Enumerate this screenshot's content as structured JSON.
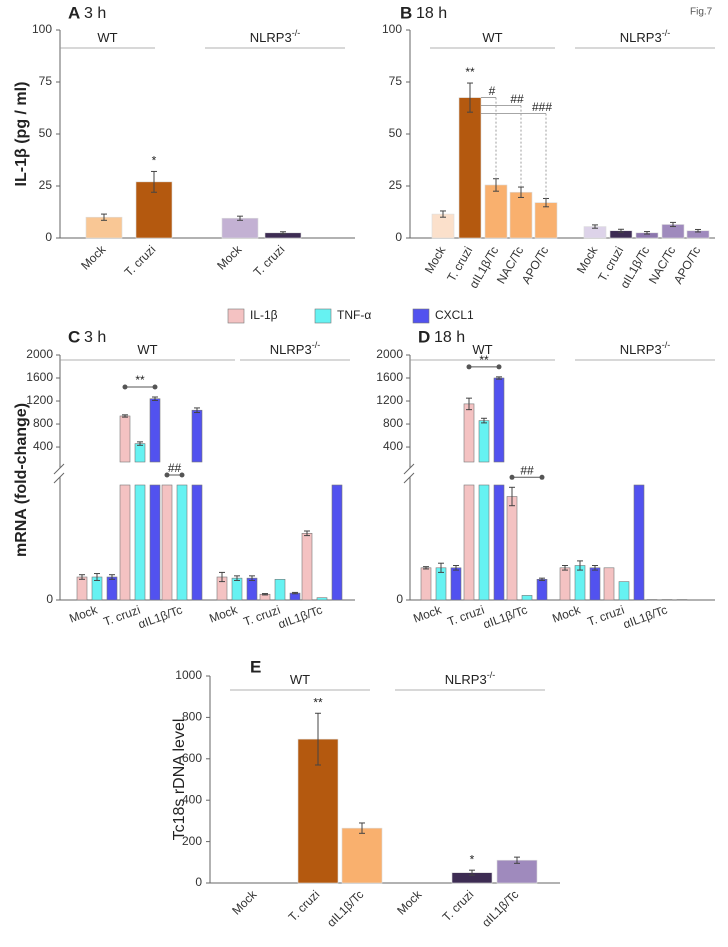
{
  "chart_data": [
    {
      "type": "bar",
      "panel": "A",
      "title": "3 h",
      "ylabel": "IL-1β (pg / ml)",
      "categories": [
        "Mock",
        "T. cruzi",
        "Mock",
        "T. cruzi"
      ],
      "values": [
        10,
        27,
        9.5,
        2.5
      ],
      "errors": [
        1.5,
        5,
        1,
        0.5
      ],
      "colors": [
        "#f9c795",
        "#b4590f",
        "#c3b1d3",
        "#3d2c53"
      ],
      "value_annotations": [
        null,
        "*",
        null,
        null
      ],
      "groups": [
        {
          "name": "WT",
          "size": 2
        },
        {
          "name": "NLRP3",
          "sup": "-/-",
          "size": 2
        }
      ],
      "ylim": [
        0,
        100
      ],
      "yticks": [
        0,
        25,
        50,
        75,
        100
      ]
    },
    {
      "type": "bar",
      "panel": "B",
      "title": "18 h",
      "note": "Fig.7",
      "categories": [
        "Mock",
        "T. cruzi",
        "αIL1β/Tc",
        "NAC/Tc",
        "APO/Tc",
        "Mock",
        "T. cruzi",
        "αIL1β/Tc",
        "NAC/Tc",
        "APO/Tc"
      ],
      "values": [
        11.5,
        67.5,
        25.5,
        22,
        17,
        5.5,
        3.5,
        2.5,
        6.5,
        3.5
      ],
      "errors": [
        1.5,
        7,
        3,
        2.5,
        2,
        0.8,
        0.7,
        0.6,
        1,
        0.6
      ],
      "colors": [
        "#fbe0cb",
        "#b4590f",
        "#f9b06e",
        "#f9b06e",
        "#f9b06e",
        "#ddd3e9",
        "#3d2c53",
        "#8c76ad",
        "#9f8abd",
        "#9f8abd"
      ],
      "value_annotations": [
        null,
        "**",
        null,
        null,
        null,
        null,
        null,
        null,
        null,
        null
      ],
      "brackets": [
        {
          "text": "#",
          "from": 1,
          "to": 2
        },
        {
          "text": "##",
          "from": 1,
          "to": 3
        },
        {
          "text": "###",
          "from": 1,
          "to": 4
        }
      ],
      "groups": [
        {
          "name": "WT",
          "size": 5
        },
        {
          "name": "NLRP3",
          "sup": "-/-",
          "size": 5
        }
      ],
      "ylim": [
        0,
        100
      ],
      "yticks": [
        0,
        25,
        50,
        75,
        100
      ]
    },
    {
      "type": "grouped_bar",
      "panel": "C",
      "title": "3 h",
      "ylabel": "mRNA (fold-change)",
      "categories": [
        "Mock",
        "T. cruzi",
        "αIL1β/Tc",
        "Mock",
        "T. cruzi",
        "αIL1β/Tc"
      ],
      "series": [
        {
          "name": "IL-1β",
          "color": "#f4c2c2",
          "values": [
            1.0,
            940,
            50,
            1.0,
            0.25,
            2.9
          ],
          "errors": [
            0.1,
            20,
            0,
            0.2,
            0.03,
            0.1
          ]
        },
        {
          "name": "TNF-α",
          "color": "#66f2f2",
          "values": [
            1.0,
            460,
            50,
            0.95,
            0.9,
            0.1
          ],
          "errors": [
            0.15,
            30,
            0,
            0.1,
            0,
            0
          ]
        },
        {
          "name": "CXCL1",
          "color": "#5252ef",
          "values": [
            1.0,
            1240,
            1040,
            0.95,
            0.3,
            50
          ],
          "errors": [
            0.1,
            30,
            40,
            0.1,
            0.03,
            0
          ]
        }
      ],
      "brackets": [
        {
          "text": "**",
          "category": 1,
          "series": [
            0,
            2
          ]
        },
        {
          "text": "##",
          "category": 2,
          "series": [
            0,
            1
          ]
        }
      ],
      "groups": [
        {
          "name": "WT",
          "size": 3
        },
        {
          "name": "NLRP3",
          "sup": "-/-",
          "size": 3
        }
      ],
      "ylim": [
        0,
        2000
      ],
      "ybreak": [
        5,
        140
      ],
      "yticks": [
        0,
        400,
        800,
        1200,
        1600,
        2000
      ]
    },
    {
      "type": "grouped_bar",
      "panel": "D",
      "title": "18 h",
      "categories": [
        "Mock",
        "T. cruzi",
        "αIL1β/Tc",
        "Mock",
        "T. cruzi",
        "αIL1β/Tc"
      ],
      "series": [
        {
          "color": "#f4c2c2",
          "values": [
            1.4,
            1150,
            4.5,
            1.4,
            1.4,
            0.02
          ],
          "errors": [
            0.05,
            100,
            0.4,
            0.1,
            0,
            0
          ]
        },
        {
          "color": "#66f2f2",
          "values": [
            1.4,
            860,
            0.2,
            1.5,
            0.8,
            0.02
          ],
          "errors": [
            0.2,
            40,
            0,
            0.2,
            0,
            0
          ]
        },
        {
          "color": "#5252ef",
          "values": [
            1.4,
            1600,
            0.9,
            1.4,
            50,
            0.02
          ],
          "errors": [
            0.1,
            20,
            0.05,
            0.1,
            0,
            0
          ]
        }
      ],
      "brackets": [
        {
          "text": "**",
          "category": 1,
          "series": [
            0,
            2
          ]
        },
        {
          "text": "##",
          "category": 2,
          "series": [
            0,
            2
          ]
        }
      ],
      "groups": [
        {
          "name": "WT",
          "size": 3
        },
        {
          "name": "NLRP3",
          "sup": "-/-",
          "size": 3
        }
      ],
      "ylim": [
        0,
        2000
      ],
      "ybreak": [
        5,
        140
      ],
      "yticks": [
        0,
        400,
        800,
        1200,
        1600,
        2000
      ]
    },
    {
      "type": "bar",
      "panel": "E",
      "ylabel": "Tc18s rDNA level",
      "categories": [
        "Mock",
        "T. cruzi",
        "αIL1β/Tc",
        "Mock",
        "T. cruzi",
        "αIL1β/Tc"
      ],
      "values": [
        0,
        695,
        265,
        0,
        50,
        110
      ],
      "errors": [
        0,
        125,
        25,
        0,
        12,
        15
      ],
      "colors": [
        "#b4590f",
        "#b4590f",
        "#f9b06e",
        "#3d2c53",
        "#3d2c53",
        "#9f8abd"
      ],
      "value_annotations": [
        null,
        "**",
        null,
        null,
        "*",
        null
      ],
      "groups": [
        {
          "name": "WT",
          "size": 3
        },
        {
          "name": "NLRP3",
          "sup": "-/-",
          "size": 3
        }
      ],
      "ylim": [
        0,
        1000
      ],
      "yticks": [
        0,
        200,
        400,
        600,
        800,
        1000
      ]
    }
  ]
}
